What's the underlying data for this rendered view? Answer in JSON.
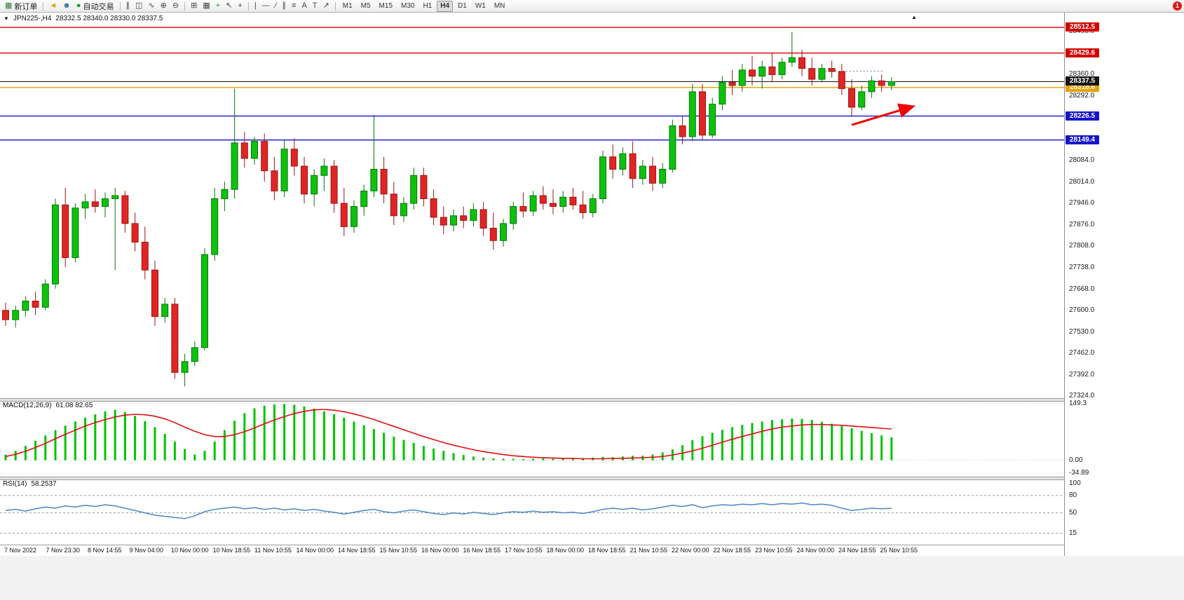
{
  "toolbar": {
    "notification_count": "1",
    "active_timeframe": "H4",
    "items": [
      {
        "kind": "btn",
        "name": "new-order-button",
        "glyph": "▦",
        "color": "#2e7d32",
        "label": "新订单"
      },
      {
        "kind": "sep"
      },
      {
        "kind": "btn",
        "name": "sound-icon",
        "glyph": "◄",
        "color": "#e8a000"
      },
      {
        "kind": "btn",
        "name": "contacts-icon",
        "glyph": "☻",
        "color": "#3a6ea5"
      },
      {
        "kind": "btn",
        "name": "autotrading-button",
        "glyph": "●",
        "color": "#1f9d2f",
        "label": "自动交易"
      },
      {
        "kind": "sep"
      },
      {
        "kind": "btn",
        "name": "bar-chart-icon",
        "glyph": "∥",
        "color": "#444"
      },
      {
        "kind": "btn",
        "name": "candlestick-chart-icon",
        "glyph": "◫",
        "color": "#444"
      },
      {
        "kind": "btn",
        "name": "line-chart-icon",
        "glyph": "∿",
        "color": "#444"
      },
      {
        "kind": "btn",
        "name": "zoom-in-icon",
        "glyph": "⊕",
        "color": "#444"
      },
      {
        "kind": "btn",
        "name": "zoom-out-icon",
        "glyph": "⊖",
        "color": "#444"
      },
      {
        "kind": "sep"
      },
      {
        "kind": "btn",
        "name": "tile-windows-icon",
        "glyph": "⊞",
        "color": "#444"
      },
      {
        "kind": "btn",
        "name": "arrange-windows-icon",
        "glyph": "▦",
        "color": "#444"
      },
      {
        "kind": "btn",
        "name": "indicators-icon",
        "glyph": "+",
        "color": "#1f9d2f"
      },
      {
        "kind": "btn",
        "name": "cursor-icon",
        "glyph": "↖",
        "color": "#444"
      },
      {
        "kind": "btn",
        "name": "crosshair-icon",
        "glyph": "+",
        "color": "#444"
      },
      {
        "kind": "sep"
      },
      {
        "kind": "btn",
        "name": "vertical-line-icon",
        "glyph": "|",
        "color": "#444"
      },
      {
        "kind": "btn",
        "name": "horizontal-line-icon",
        "glyph": "—",
        "color": "#444"
      },
      {
        "kind": "btn",
        "name": "trendline-icon",
        "glyph": "∕",
        "color": "#444"
      },
      {
        "kind": "btn",
        "name": "channel-icon",
        "glyph": "∥",
        "color": "#444"
      },
      {
        "kind": "btn",
        "name": "fibonacci-icon",
        "glyph": "≡",
        "color": "#444"
      },
      {
        "kind": "btn",
        "name": "text-icon",
        "glyph": "A",
        "color": "#444"
      },
      {
        "kind": "btn",
        "name": "label-icon",
        "glyph": "T",
        "color": "#444"
      },
      {
        "kind": "btn",
        "name": "shapes-icon",
        "glyph": "↗",
        "color": "#444"
      },
      {
        "kind": "sep"
      },
      {
        "kind": "tf",
        "label": "M1"
      },
      {
        "kind": "tf",
        "label": "M5"
      },
      {
        "kind": "tf",
        "label": "M15"
      },
      {
        "kind": "tf",
        "label": "M30"
      },
      {
        "kind": "tf",
        "label": "H1"
      },
      {
        "kind": "tf",
        "label": "H4"
      },
      {
        "kind": "tf",
        "label": "D1"
      },
      {
        "kind": "tf",
        "label": "W1"
      },
      {
        "kind": "tf",
        "label": "MN"
      }
    ]
  },
  "chart": {
    "symbol_label": "JPN225-,H4",
    "ohlc": "28332.5 28340.0 28330.0 28337.5",
    "scroll_marker": "▲",
    "price_range": {
      "min": 27317,
      "max": 28560
    },
    "colors": {
      "up": "#0ec10e",
      "up_dark": "#067806",
      "down": "#e02525",
      "down_dark": "#9c1414"
    },
    "y_axis_labels": [
      "28498.0",
      "28360.0",
      "28292.0",
      "28084.0",
      "28014.0",
      "27946.0",
      "27876.0",
      "27808.0",
      "27738.0",
      "27668.0",
      "27600.0",
      "27530.0",
      "27462.0",
      "27392.0",
      "27324.0"
    ],
    "hlines": [
      {
        "label": "28512.5",
        "color": "#d40000"
      },
      {
        "label": "28429.6",
        "color": "#d40000"
      },
      {
        "label": "28318.6",
        "color": "#e8a000"
      },
      {
        "label": "28226.5",
        "color": "#1414cc"
      },
      {
        "label": "28149.4",
        "color": "#1414cc"
      }
    ],
    "current_price": {
      "label": "28337.5",
      "color": "#141414"
    },
    "dotted_segment": {
      "price": 28371,
      "from_bar": 82.3,
      "to_bar": 88.3,
      "color": "#777777"
    },
    "arrow": {
      "color": "#f00000",
      "from": {
        "bar": 85,
        "price": 28198
      },
      "to": {
        "bar": 91,
        "price": 28256
      }
    },
    "candles": [
      [
        27600,
        27625,
        27550,
        27570
      ],
      [
        27570,
        27615,
        27545,
        27600
      ],
      [
        27600,
        27645,
        27580,
        27630
      ],
      [
        27630,
        27660,
        27585,
        27610
      ],
      [
        27610,
        27700,
        27600,
        27685
      ],
      [
        27685,
        27960,
        27670,
        27940
      ],
      [
        27940,
        27995,
        27740,
        27770
      ],
      [
        27770,
        27945,
        27755,
        27930
      ],
      [
        27930,
        27975,
        27895,
        27950
      ],
      [
        27950,
        27990,
        27915,
        27935
      ],
      [
        27935,
        27980,
        27900,
        27960
      ],
      [
        27960,
        27995,
        27730,
        27970
      ],
      [
        27970,
        27985,
        27850,
        27880
      ],
      [
        27880,
        27915,
        27790,
        27820
      ],
      [
        27820,
        27870,
        27700,
        27730
      ],
      [
        27730,
        27760,
        27550,
        27580
      ],
      [
        27580,
        27640,
        27560,
        27620
      ],
      [
        27620,
        27640,
        27380,
        27400
      ],
      [
        27400,
        27460,
        27355,
        27435
      ],
      [
        27435,
        27500,
        27420,
        27480
      ],
      [
        27480,
        27800,
        27470,
        27780
      ],
      [
        27780,
        27995,
        27760,
        27960
      ],
      [
        27960,
        28015,
        27920,
        27990
      ],
      [
        27990,
        28315,
        27960,
        28140
      ],
      [
        28140,
        28175,
        28060,
        28090
      ],
      [
        28090,
        28160,
        28070,
        28145
      ],
      [
        28145,
        28170,
        28015,
        28050
      ],
      [
        28050,
        28095,
        27955,
        27985
      ],
      [
        27985,
        28150,
        27965,
        28120
      ],
      [
        28120,
        28155,
        28035,
        28065
      ],
      [
        28065,
        28095,
        27945,
        27975
      ],
      [
        27975,
        28055,
        27935,
        28035
      ],
      [
        28035,
        28090,
        27985,
        28065
      ],
      [
        28065,
        28085,
        27915,
        27945
      ],
      [
        27945,
        27995,
        27840,
        27870
      ],
      [
        27870,
        27955,
        27850,
        27935
      ],
      [
        27935,
        28005,
        27905,
        27985
      ],
      [
        27985,
        28230,
        27965,
        28055
      ],
      [
        28055,
        28095,
        27945,
        27975
      ],
      [
        27975,
        28015,
        27875,
        27905
      ],
      [
        27905,
        27965,
        27885,
        27945
      ],
      [
        27945,
        28060,
        27925,
        28035
      ],
      [
        28035,
        28060,
        27935,
        27960
      ],
      [
        27960,
        27990,
        27875,
        27900
      ],
      [
        27900,
        27935,
        27845,
        27875
      ],
      [
        27875,
        27925,
        27855,
        27905
      ],
      [
        27905,
        27935,
        27865,
        27890
      ],
      [
        27890,
        27945,
        27870,
        27925
      ],
      [
        27925,
        27950,
        27840,
        27865
      ],
      [
        27865,
        27915,
        27795,
        27825
      ],
      [
        27825,
        27895,
        27805,
        27880
      ],
      [
        27880,
        27950,
        27860,
        27935
      ],
      [
        27935,
        27980,
        27900,
        27920
      ],
      [
        27920,
        27985,
        27905,
        27970
      ],
      [
        27970,
        28000,
        27925,
        27945
      ],
      [
        27945,
        27990,
        27910,
        27935
      ],
      [
        27935,
        27985,
        27915,
        27965
      ],
      [
        27965,
        27995,
        27925,
        27940
      ],
      [
        27940,
        27985,
        27895,
        27915
      ],
      [
        27915,
        27975,
        27900,
        27960
      ],
      [
        27960,
        28115,
        27945,
        28095
      ],
      [
        28095,
        28135,
        28025,
        28055
      ],
      [
        28055,
        28125,
        28035,
        28105
      ],
      [
        28105,
        28145,
        27995,
        28025
      ],
      [
        28025,
        28085,
        28005,
        28065
      ],
      [
        28065,
        28095,
        27985,
        28010
      ],
      [
        28010,
        28075,
        27995,
        28055
      ],
      [
        28055,
        28215,
        28045,
        28195
      ],
      [
        28195,
        28225,
        28135,
        28160
      ],
      [
        28160,
        28330,
        28145,
        28305
      ],
      [
        28305,
        28330,
        28150,
        28165
      ],
      [
        28165,
        28285,
        28155,
        28265
      ],
      [
        28265,
        28355,
        28245,
        28335
      ],
      [
        28335,
        28375,
        28295,
        28325
      ],
      [
        28325,
        28395,
        28305,
        28375
      ],
      [
        28375,
        28420,
        28325,
        28355
      ],
      [
        28355,
        28405,
        28315,
        28385
      ],
      [
        28385,
        28430,
        28335,
        28360
      ],
      [
        28360,
        28415,
        28345,
        28400
      ],
      [
        28400,
        28498,
        28385,
        28415
      ],
      [
        28415,
        28440,
        28355,
        28380
      ],
      [
        28380,
        28415,
        28325,
        28345
      ],
      [
        28345,
        28395,
        28335,
        28380
      ],
      [
        28380,
        28405,
        28350,
        28370
      ],
      [
        28370,
        28395,
        28295,
        28315
      ],
      [
        28315,
        28345,
        28225,
        28255
      ],
      [
        28255,
        28325,
        28245,
        28305
      ],
      [
        28305,
        28355,
        28285,
        28340
      ],
      [
        28340,
        28360,
        28305,
        28325
      ],
      [
        28325,
        28352,
        28310,
        28337.5
      ]
    ]
  },
  "macd": {
    "label": "MACD(12,26,9)",
    "values_label": "61.08 82.65",
    "axis": [
      "149.3",
      "0.00",
      "-34.89"
    ],
    "range": [
      -36,
      152
    ],
    "colors": {
      "histogram": "#00c400",
      "signal": "#e01010"
    },
    "histogram": [
      15,
      25,
      38,
      52,
      66,
      80,
      92,
      103,
      113,
      122,
      130,
      134,
      128,
      118,
      104,
      88,
      70,
      50,
      30,
      15,
      25,
      50,
      80,
      105,
      125,
      138,
      145,
      148,
      149,
      147,
      143,
      137,
      130,
      122,
      113,
      103,
      93,
      83,
      73,
      63,
      54,
      46,
      38,
      31,
      25,
      19,
      14,
      10,
      7,
      5,
      4,
      4,
      3,
      4,
      5,
      4,
      4,
      5,
      6,
      7,
      9,
      8,
      10,
      12,
      12,
      15,
      21,
      29,
      40,
      53,
      64,
      73,
      81,
      88,
      94,
      99,
      103,
      107,
      109,
      111,
      110,
      107,
      102,
      97,
      91,
      85,
      78,
      72,
      66,
      61
    ],
    "signal": [
      10,
      16,
      24,
      34,
      45,
      57,
      69,
      80,
      91,
      100,
      108,
      115,
      120,
      122,
      121,
      117,
      110,
      100,
      88,
      77,
      68,
      63,
      63,
      68,
      76,
      86,
      97,
      107,
      116,
      124,
      130,
      134,
      135,
      133,
      129,
      123,
      116,
      108,
      99,
      90,
      81,
      72,
      63,
      55,
      47,
      40,
      34,
      28,
      23,
      19,
      15,
      12,
      10,
      8,
      7,
      6,
      5,
      5,
      4,
      4,
      4,
      5,
      5,
      6,
      7,
      8,
      10,
      14,
      19,
      25,
      32,
      40,
      48,
      56,
      63,
      70,
      77,
      83,
      88,
      91,
      94,
      95,
      95,
      94,
      93,
      91,
      89,
      87,
      85,
      83
    ]
  },
  "rsi": {
    "label": "RSI(14)",
    "value_label": "58.2537",
    "axis": [
      "100",
      "80",
      "50",
      "15"
    ],
    "levels": [
      80,
      50,
      15
    ],
    "color": "#4a86c8",
    "values": [
      54,
      56,
      53,
      57,
      60,
      58,
      62,
      60,
      63,
      61,
      64,
      62,
      58,
      54,
      50,
      46,
      44,
      42,
      40,
      45,
      52,
      56,
      58,
      60,
      57,
      59,
      56,
      58,
      55,
      57,
      54,
      56,
      53,
      51,
      48,
      51,
      54,
      56,
      52,
      50,
      53,
      55,
      52,
      49,
      47,
      50,
      48,
      51,
      49,
      47,
      50,
      52,
      51,
      53,
      51,
      52,
      50,
      51,
      49,
      52,
      56,
      58,
      56,
      58,
      55,
      57,
      60,
      63,
      61,
      64,
      59,
      62,
      64,
      63,
      65,
      64,
      66,
      64,
      66,
      65,
      67,
      64,
      65,
      63,
      58,
      54,
      56,
      58,
      57,
      58
    ]
  },
  "time_axis": {
    "labels": [
      "7 Nov 2022",
      "7 Nov 23:30",
      "8 Nov 14:55",
      "9 Nov 04:00",
      "10 Nov 00:00",
      "10 Nov 18:55",
      "11 Nov 10:55",
      "14 Nov 00:00",
      "14 Nov 18:55",
      "15 Nov 10:55",
      "16 Nov 00:00",
      "16 Nov 18:55",
      "17 Nov 10:55",
      "18 Nov 00:00",
      "18 Nov 18:55",
      "21 Nov 10:55",
      "22 Nov 00:00",
      "22 Nov 18:55",
      "23 Nov 10:55",
      "24 Nov 00:00",
      "24 Nov 18:55",
      "25 Nov 10:55"
    ]
  }
}
